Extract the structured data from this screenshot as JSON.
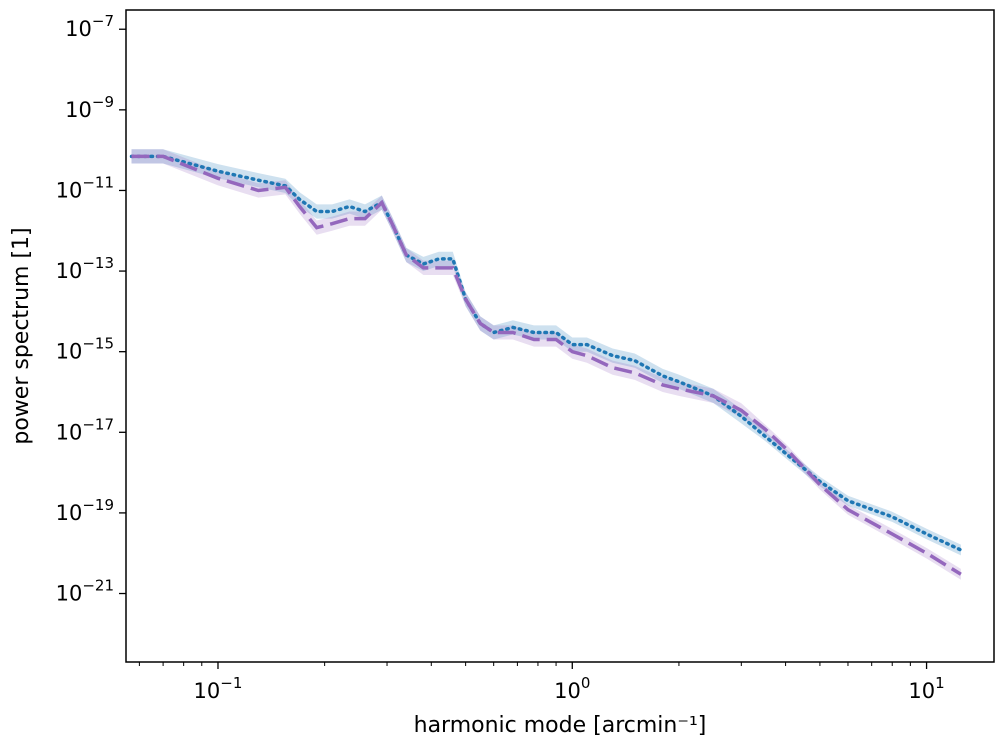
{
  "chart_data": {
    "type": "line",
    "xscale": "log",
    "yscale": "log",
    "xlabel": "harmonic mode [arcmin⁻¹]",
    "ylabel": "power spectrum [1]",
    "xlim": [
      0.055,
      15.5
    ],
    "ylim": [
      2e-23,
      3e-07
    ],
    "grid": false,
    "x_ticks": [
      {
        "value": 0.1,
        "base": "10",
        "exp": "−1"
      },
      {
        "value": 1,
        "base": "10",
        "exp": "0"
      },
      {
        "value": 10,
        "base": "10",
        "exp": "1"
      }
    ],
    "y_ticks": [
      {
        "value": 1e-21,
        "base": "10",
        "exp": "−21"
      },
      {
        "value": 1e-19,
        "base": "10",
        "exp": "−19"
      },
      {
        "value": 1e-17,
        "base": "10",
        "exp": "−17"
      },
      {
        "value": 1e-15,
        "base": "10",
        "exp": "−15"
      },
      {
        "value": 1e-13,
        "base": "10",
        "exp": "−13"
      },
      {
        "value": 1e-11,
        "base": "10",
        "exp": "−11"
      },
      {
        "value": 1e-09,
        "base": "10",
        "exp": "−9"
      },
      {
        "value": 1e-07,
        "base": "10",
        "exp": "−7"
      }
    ],
    "series": [
      {
        "style": "dotted",
        "color": "#1f77b4",
        "band_color": "#1f77b4",
        "x": [
          0.057,
          0.07,
          0.1,
          0.13,
          0.155,
          0.17,
          0.19,
          0.21,
          0.235,
          0.26,
          0.29,
          0.31,
          0.34,
          0.38,
          0.42,
          0.46,
          0.5,
          0.55,
          0.6,
          0.68,
          0.78,
          0.9,
          1.0,
          1.1,
          1.3,
          1.5,
          1.8,
          2.0,
          2.5,
          3.0,
          3.5,
          4.0,
          5.0,
          6.0,
          8.0,
          10.0,
          12.5
        ],
        "y": [
          7e-11,
          7e-11,
          3e-11,
          1.8e-11,
          1.3e-11,
          6e-12,
          3e-12,
          3e-12,
          4e-12,
          3e-12,
          5e-12,
          1.5e-12,
          2.5e-13,
          1.5e-13,
          2e-13,
          2e-13,
          2e-14,
          5e-15,
          3e-15,
          4e-15,
          3e-15,
          3e-15,
          1.5e-15,
          1.5e-15,
          8e-16,
          6e-16,
          2.5e-16,
          1.8e-16,
          8e-17,
          2.5e-17,
          8e-18,
          3e-18,
          6e-19,
          2e-19,
          8e-20,
          3e-20,
          1.2e-20
        ]
      },
      {
        "style": "dashed",
        "color": "#9467bd",
        "band_color": "#9467bd",
        "x": [
          0.057,
          0.07,
          0.1,
          0.13,
          0.155,
          0.17,
          0.19,
          0.21,
          0.235,
          0.26,
          0.29,
          0.31,
          0.34,
          0.38,
          0.42,
          0.46,
          0.5,
          0.55,
          0.6,
          0.68,
          0.78,
          0.9,
          1.0,
          1.1,
          1.3,
          1.5,
          1.8,
          2.0,
          2.5,
          3.0,
          3.5,
          4.0,
          5.0,
          6.0,
          8.0,
          10.0,
          12.5
        ],
        "y": [
          7e-11,
          7e-11,
          2e-11,
          1e-11,
          1.2e-11,
          4e-12,
          1.2e-12,
          1.5e-12,
          2e-12,
          2e-12,
          5e-12,
          1.5e-12,
          2.5e-13,
          1.2e-13,
          1.2e-13,
          1.2e-13,
          2e-14,
          5e-15,
          3e-15,
          3e-15,
          2e-15,
          2e-15,
          1e-15,
          8e-16,
          4e-16,
          3e-16,
          1.5e-16,
          1.2e-16,
          8e-17,
          3.5e-17,
          1.2e-17,
          4e-18,
          5e-19,
          1.2e-19,
          3e-20,
          1e-20,
          3e-21
        ]
      }
    ]
  }
}
